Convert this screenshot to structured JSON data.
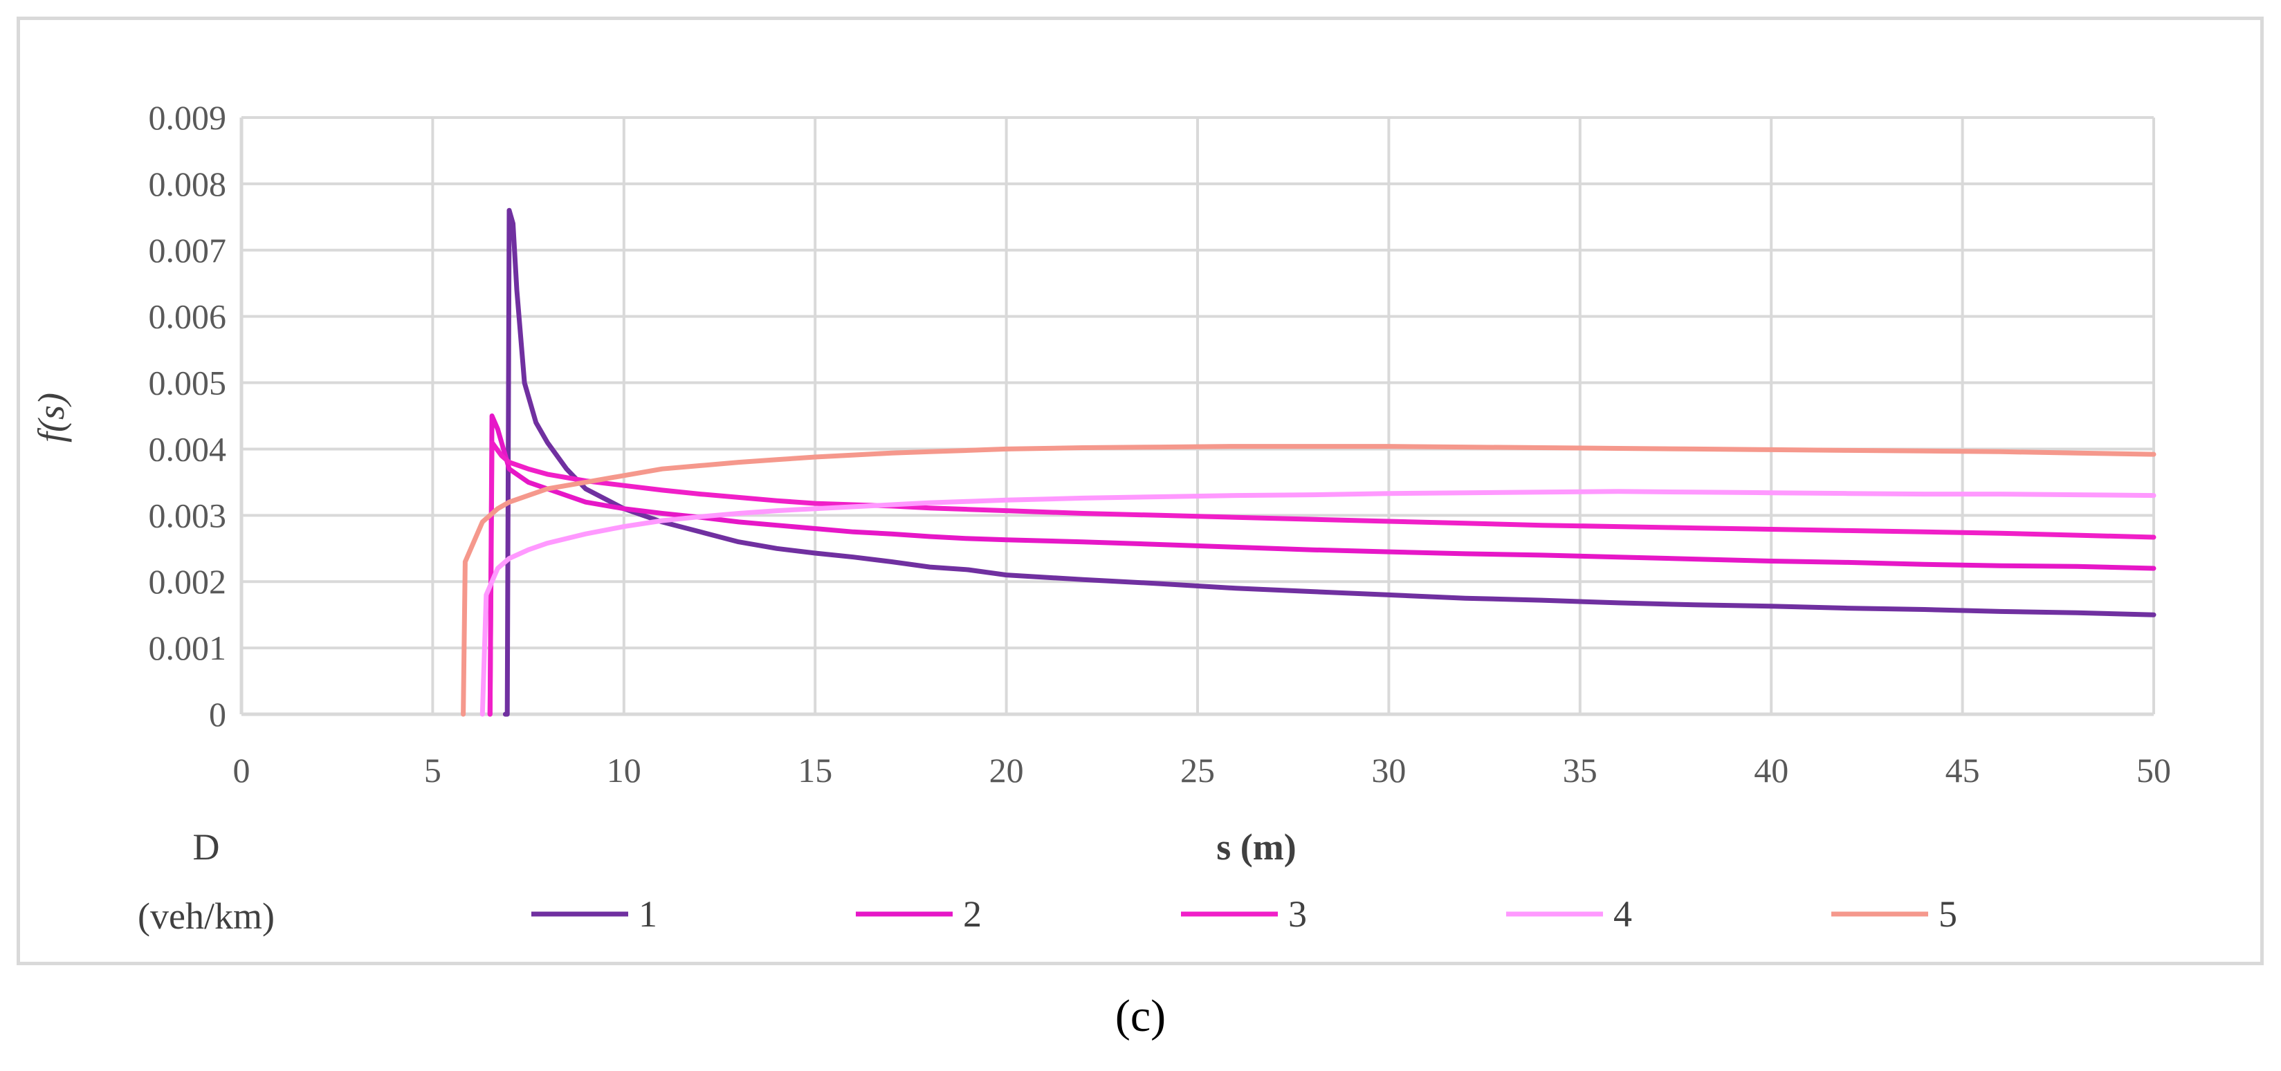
{
  "panel_label": "(c)",
  "chart_data": {
    "type": "line",
    "title": "",
    "xlabel": "s (m)",
    "ylabel": "f(s)",
    "xlim": [
      0,
      50
    ],
    "ylim": [
      0,
      0.009
    ],
    "x_ticks": [
      0,
      5,
      10,
      15,
      20,
      25,
      30,
      35,
      40,
      45,
      50
    ],
    "y_ticks": [
      0,
      0.001,
      0.002,
      0.003,
      0.004,
      0.005,
      0.006,
      0.007,
      0.008,
      0.009
    ],
    "x_tick_labels": [
      "0",
      "5",
      "10",
      "15",
      "20",
      "25",
      "30",
      "35",
      "40",
      "45",
      "50"
    ],
    "y_tick_labels": [
      "0",
      "0.001",
      "0.002",
      "0.003",
      "0.004",
      "0.005",
      "0.006",
      "0.007",
      "0.008",
      "0.009"
    ],
    "grid": true,
    "legend": {
      "title_line1": "D",
      "title_line2": "(veh/km)",
      "position": "bottom"
    },
    "series": [
      {
        "name": "1",
        "color": "#7030a0",
        "points": [
          [
            6.9,
            0
          ],
          [
            6.95,
            0
          ],
          [
            7.0,
            0.0076
          ],
          [
            7.1,
            0.0074
          ],
          [
            7.2,
            0.0064
          ],
          [
            7.4,
            0.005
          ],
          [
            7.7,
            0.0044
          ],
          [
            8.0,
            0.0041
          ],
          [
            8.5,
            0.0037
          ],
          [
            9,
            0.0034
          ],
          [
            10,
            0.0031
          ],
          [
            11,
            0.0029
          ],
          [
            12,
            0.00275
          ],
          [
            13,
            0.0026
          ],
          [
            14,
            0.0025
          ],
          [
            15,
            0.00243
          ],
          [
            16,
            0.00237
          ],
          [
            17,
            0.0023
          ],
          [
            18,
            0.00222
          ],
          [
            19,
            0.00218
          ],
          [
            20,
            0.0021
          ],
          [
            22,
            0.00203
          ],
          [
            24,
            0.00197
          ],
          [
            26,
            0.0019
          ],
          [
            28,
            0.00185
          ],
          [
            30,
            0.0018
          ],
          [
            32,
            0.00175
          ],
          [
            34,
            0.00172
          ],
          [
            36,
            0.00168
          ],
          [
            38,
            0.00165
          ],
          [
            40,
            0.00163
          ],
          [
            42,
            0.0016
          ],
          [
            44,
            0.00158
          ],
          [
            46,
            0.00155
          ],
          [
            48,
            0.00153
          ],
          [
            50,
            0.0015
          ]
        ]
      },
      {
        "name": "2",
        "color": "#e617c7",
        "points": [
          [
            6.5,
            0
          ],
          [
            6.55,
            0.0045
          ],
          [
            6.7,
            0.0043
          ],
          [
            7.0,
            0.0037
          ],
          [
            7.5,
            0.0035
          ],
          [
            8,
            0.0034
          ],
          [
            9,
            0.0032
          ],
          [
            10,
            0.0031
          ],
          [
            11,
            0.00303
          ],
          [
            12,
            0.00297
          ],
          [
            13,
            0.0029
          ],
          [
            14,
            0.00285
          ],
          [
            15,
            0.0028
          ],
          [
            16,
            0.00275
          ],
          [
            17,
            0.00272
          ],
          [
            18,
            0.00268
          ],
          [
            19,
            0.00265
          ],
          [
            20,
            0.00263
          ],
          [
            22,
            0.0026
          ],
          [
            24,
            0.00256
          ],
          [
            26,
            0.00252
          ],
          [
            28,
            0.00248
          ],
          [
            30,
            0.00245
          ],
          [
            32,
            0.00242
          ],
          [
            34,
            0.0024
          ],
          [
            36,
            0.00237
          ],
          [
            38,
            0.00234
          ],
          [
            40,
            0.00231
          ],
          [
            42,
            0.00229
          ],
          [
            44,
            0.00226
          ],
          [
            46,
            0.00224
          ],
          [
            48,
            0.00223
          ],
          [
            50,
            0.0022
          ]
        ]
      },
      {
        "name": "3",
        "color": "#f01fc8",
        "points": [
          [
            6.5,
            0
          ],
          [
            6.55,
            0.0041
          ],
          [
            6.8,
            0.0039
          ],
          [
            7.0,
            0.0038
          ],
          [
            7.5,
            0.0037
          ],
          [
            8,
            0.00362
          ],
          [
            9,
            0.00352
          ],
          [
            10,
            0.00345
          ],
          [
            11,
            0.00338
          ],
          [
            12,
            0.00332
          ],
          [
            13,
            0.00327
          ],
          [
            14,
            0.00322
          ],
          [
            15,
            0.00318
          ],
          [
            16,
            0.00316
          ],
          [
            17,
            0.00314
          ],
          [
            18,
            0.00311
          ],
          [
            19,
            0.00309
          ],
          [
            20,
            0.00307
          ],
          [
            22,
            0.00303
          ],
          [
            24,
            0.003
          ],
          [
            26,
            0.00297
          ],
          [
            28,
            0.00294
          ],
          [
            30,
            0.00291
          ],
          [
            32,
            0.00288
          ],
          [
            34,
            0.00285
          ],
          [
            36,
            0.00283
          ],
          [
            38,
            0.00281
          ],
          [
            40,
            0.00279
          ],
          [
            42,
            0.00277
          ],
          [
            44,
            0.00275
          ],
          [
            46,
            0.00273
          ],
          [
            48,
            0.0027
          ],
          [
            50,
            0.00267
          ]
        ]
      },
      {
        "name": "4",
        "color": "#ff99ff",
        "points": [
          [
            6.3,
            0
          ],
          [
            6.4,
            0.0018
          ],
          [
            6.7,
            0.0022
          ],
          [
            7.0,
            0.00235
          ],
          [
            7.5,
            0.00248
          ],
          [
            8,
            0.00258
          ],
          [
            9,
            0.00272
          ],
          [
            10,
            0.00283
          ],
          [
            11,
            0.00292
          ],
          [
            12,
            0.00298
          ],
          [
            13,
            0.00303
          ],
          [
            14,
            0.00307
          ],
          [
            15,
            0.0031
          ],
          [
            16,
            0.00313
          ],
          [
            17,
            0.00316
          ],
          [
            18,
            0.00319
          ],
          [
            19,
            0.00321
          ],
          [
            20,
            0.00323
          ],
          [
            22,
            0.00326
          ],
          [
            24,
            0.00328
          ],
          [
            26,
            0.0033
          ],
          [
            28,
            0.00331
          ],
          [
            30,
            0.00333
          ],
          [
            32,
            0.00334
          ],
          [
            34,
            0.00335
          ],
          [
            36,
            0.00336
          ],
          [
            38,
            0.00335
          ],
          [
            40,
            0.00334
          ],
          [
            42,
            0.00333
          ],
          [
            44,
            0.00332
          ],
          [
            46,
            0.00332
          ],
          [
            48,
            0.00331
          ],
          [
            50,
            0.0033
          ]
        ]
      },
      {
        "name": "5",
        "color": "#f5988c",
        "points": [
          [
            5.8,
            0
          ],
          [
            5.85,
            0.0023
          ],
          [
            6.0,
            0.0025
          ],
          [
            6.3,
            0.0029
          ],
          [
            6.7,
            0.0031
          ],
          [
            7.0,
            0.0032
          ],
          [
            7.5,
            0.0033
          ],
          [
            8,
            0.0034
          ],
          [
            9,
            0.0035
          ],
          [
            10,
            0.0036
          ],
          [
            11,
            0.0037
          ],
          [
            12,
            0.00375
          ],
          [
            13,
            0.0038
          ],
          [
            14,
            0.00384
          ],
          [
            15,
            0.00388
          ],
          [
            16,
            0.00391
          ],
          [
            17,
            0.00394
          ],
          [
            18,
            0.00396
          ],
          [
            19,
            0.00398
          ],
          [
            20,
            0.004
          ],
          [
            22,
            0.00402
          ],
          [
            24,
            0.00403
          ],
          [
            26,
            0.00404
          ],
          [
            28,
            0.00404
          ],
          [
            30,
            0.00404
          ],
          [
            32,
            0.00403
          ],
          [
            34,
            0.00402
          ],
          [
            36,
            0.00401
          ],
          [
            38,
            0.004
          ],
          [
            40,
            0.00399
          ],
          [
            42,
            0.00398
          ],
          [
            44,
            0.00397
          ],
          [
            46,
            0.00396
          ],
          [
            48,
            0.00394
          ],
          [
            50,
            0.00392
          ]
        ]
      }
    ]
  }
}
